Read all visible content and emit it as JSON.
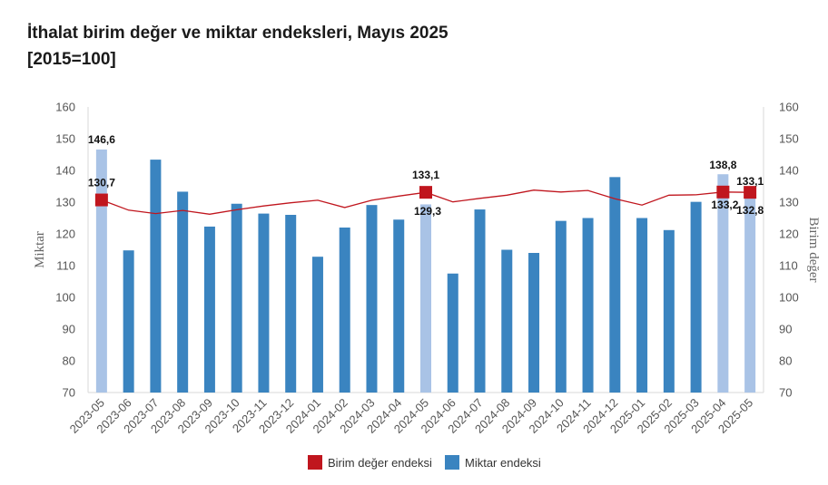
{
  "title": {
    "line1": "İthalat birim değer ve miktar endeksleri, Mayıs 2025",
    "line2": "[2015=100]"
  },
  "chart_data": {
    "type": "bar",
    "title": "İthalat birim değer ve miktar endeksleri, Mayıs 2025 [2015=100]",
    "categories": [
      "2023-05",
      "2023-06",
      "2023-07",
      "2023-08",
      "2023-09",
      "2023-10",
      "2023-11",
      "2023-12",
      "2024-01",
      "2024-02",
      "2024-03",
      "2024-04",
      "2024-05",
      "2024-06",
      "2024-07",
      "2024-08",
      "2024-09",
      "2024-10",
      "2024-11",
      "2024-12",
      "2025-01",
      "2025-02",
      "2025-03",
      "2025-04",
      "2025-05"
    ],
    "ylabel_left": "Miktar",
    "ylabel_right": "Birim değer",
    "ylim": [
      70,
      160
    ],
    "yticks": [
      70,
      80,
      90,
      100,
      110,
      120,
      130,
      140,
      150,
      160
    ],
    "grid": false,
    "legend_position": "bottom",
    "series": [
      {
        "name": "Miktar endeksi",
        "type": "bar",
        "color": "#3a84c0",
        "highlight_color": "#a9c3e6",
        "highlighted_categories": [
          "2023-05",
          "2024-05",
          "2025-04",
          "2025-05"
        ],
        "values": [
          146.6,
          114.8,
          143.4,
          133.3,
          122.3,
          129.5,
          126.4,
          126.0,
          112.8,
          122.0,
          129.1,
          124.5,
          129.3,
          107.5,
          127.7,
          115.0,
          114.0,
          124.1,
          125.0,
          137.9,
          125.0,
          121.2,
          130.1,
          138.8,
          132.8
        ]
      },
      {
        "name": "Birim değer endeksi",
        "type": "line",
        "color": "#c0161e",
        "marker_categories": [
          "2023-05",
          "2024-05",
          "2025-04",
          "2025-05"
        ],
        "values": [
          130.7,
          127.5,
          126.4,
          127.4,
          126.2,
          127.6,
          128.8,
          129.8,
          130.6,
          128.3,
          130.6,
          131.9,
          133.1,
          130.1,
          131.2,
          132.2,
          133.8,
          133.2,
          133.7,
          131.1,
          129.1,
          132.2,
          132.3,
          133.2,
          133.1
        ]
      }
    ],
    "data_labels": [
      {
        "category": "2023-05",
        "text": "146,6"
      },
      {
        "category": "2023-05",
        "text": "130,7"
      },
      {
        "category": "2024-05",
        "text": "133,1"
      },
      {
        "category": "2024-05",
        "text": "129,3"
      },
      {
        "category": "2025-04",
        "text": "138,8"
      },
      {
        "category": "2025-04",
        "text": "133,2"
      },
      {
        "category": "2025-05",
        "text": "133,1"
      },
      {
        "category": "2025-05",
        "text": "132,8"
      }
    ]
  }
}
